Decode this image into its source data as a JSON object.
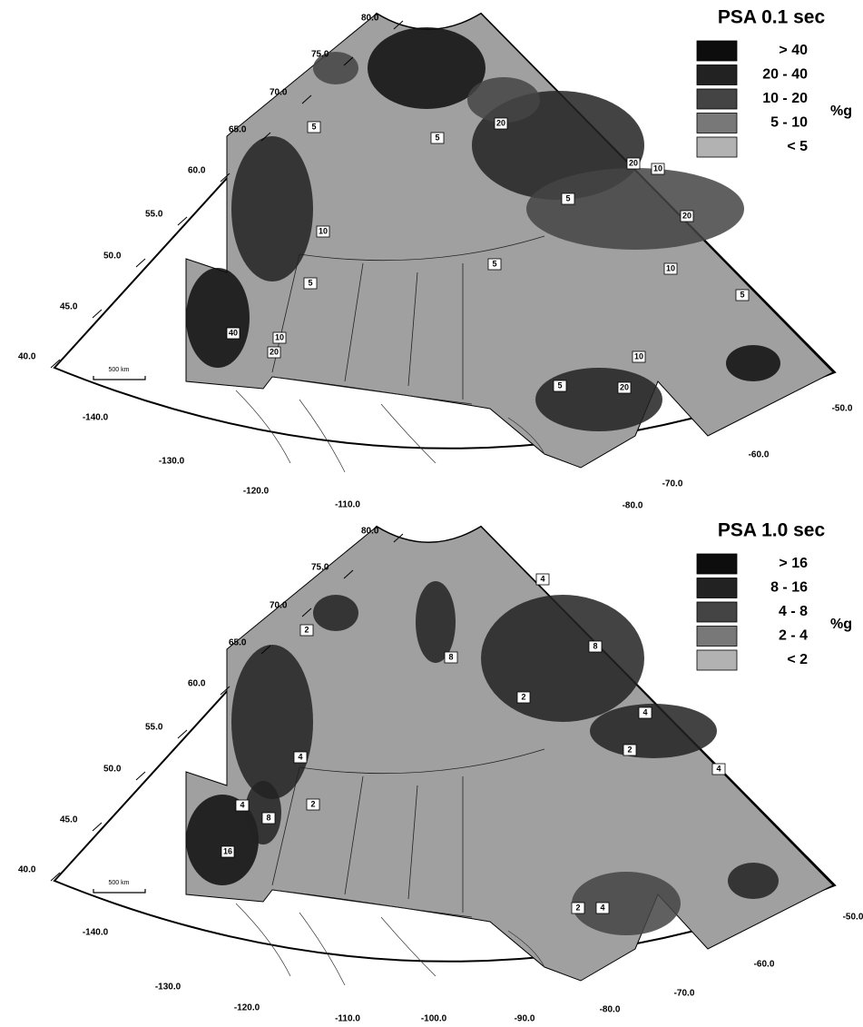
{
  "maps": [
    {
      "title": "PSA 0.1 sec",
      "legend": {
        "items": [
          "> 40",
          "20 - 40",
          "10 - 20",
          "5 - 10",
          "< 5"
        ],
        "unit": "%g"
      },
      "lat_labels": [
        "80.0",
        "75.0",
        "70.0",
        "65.0",
        "60.0",
        "55.0",
        "50.0",
        "45.0",
        "40.0"
      ],
      "lon_labels": [
        "-140.0",
        "-130.0",
        "-120.0",
        "-110.0",
        "-80.0",
        "-70.0",
        "-60.0",
        "-50.0"
      ],
      "contour_labels": [
        "5",
        "20",
        "20",
        "10",
        "5",
        "20",
        "5",
        "10",
        "5",
        "10",
        "5",
        "10",
        "40",
        "20",
        "10",
        "20",
        "5",
        "5"
      ],
      "scale_bar": "500 km"
    },
    {
      "title": "PSA 1.0 sec",
      "legend": {
        "items": [
          "> 16",
          "8 - 16",
          "4 -  8",
          "2 -  4",
          "< 2"
        ],
        "unit": "%g"
      },
      "lat_labels": [
        "80.0",
        "75.0",
        "70.0",
        "65.0",
        "60.0",
        "55.0",
        "50.0",
        "45.0",
        "40.0"
      ],
      "lon_labels": [
        "-140.0",
        "-130.0",
        "-120.0",
        "-110.0",
        "-100.0",
        "-90.0",
        "-80.0",
        "-70.0",
        "-60.0",
        "-50.0"
      ],
      "contour_labels": [
        "4",
        "2",
        "8",
        "8",
        "2",
        "4",
        "2",
        "4",
        "4",
        "2",
        "4",
        "8",
        "16",
        "2",
        "4"
      ],
      "scale_bar": "500 km"
    }
  ]
}
